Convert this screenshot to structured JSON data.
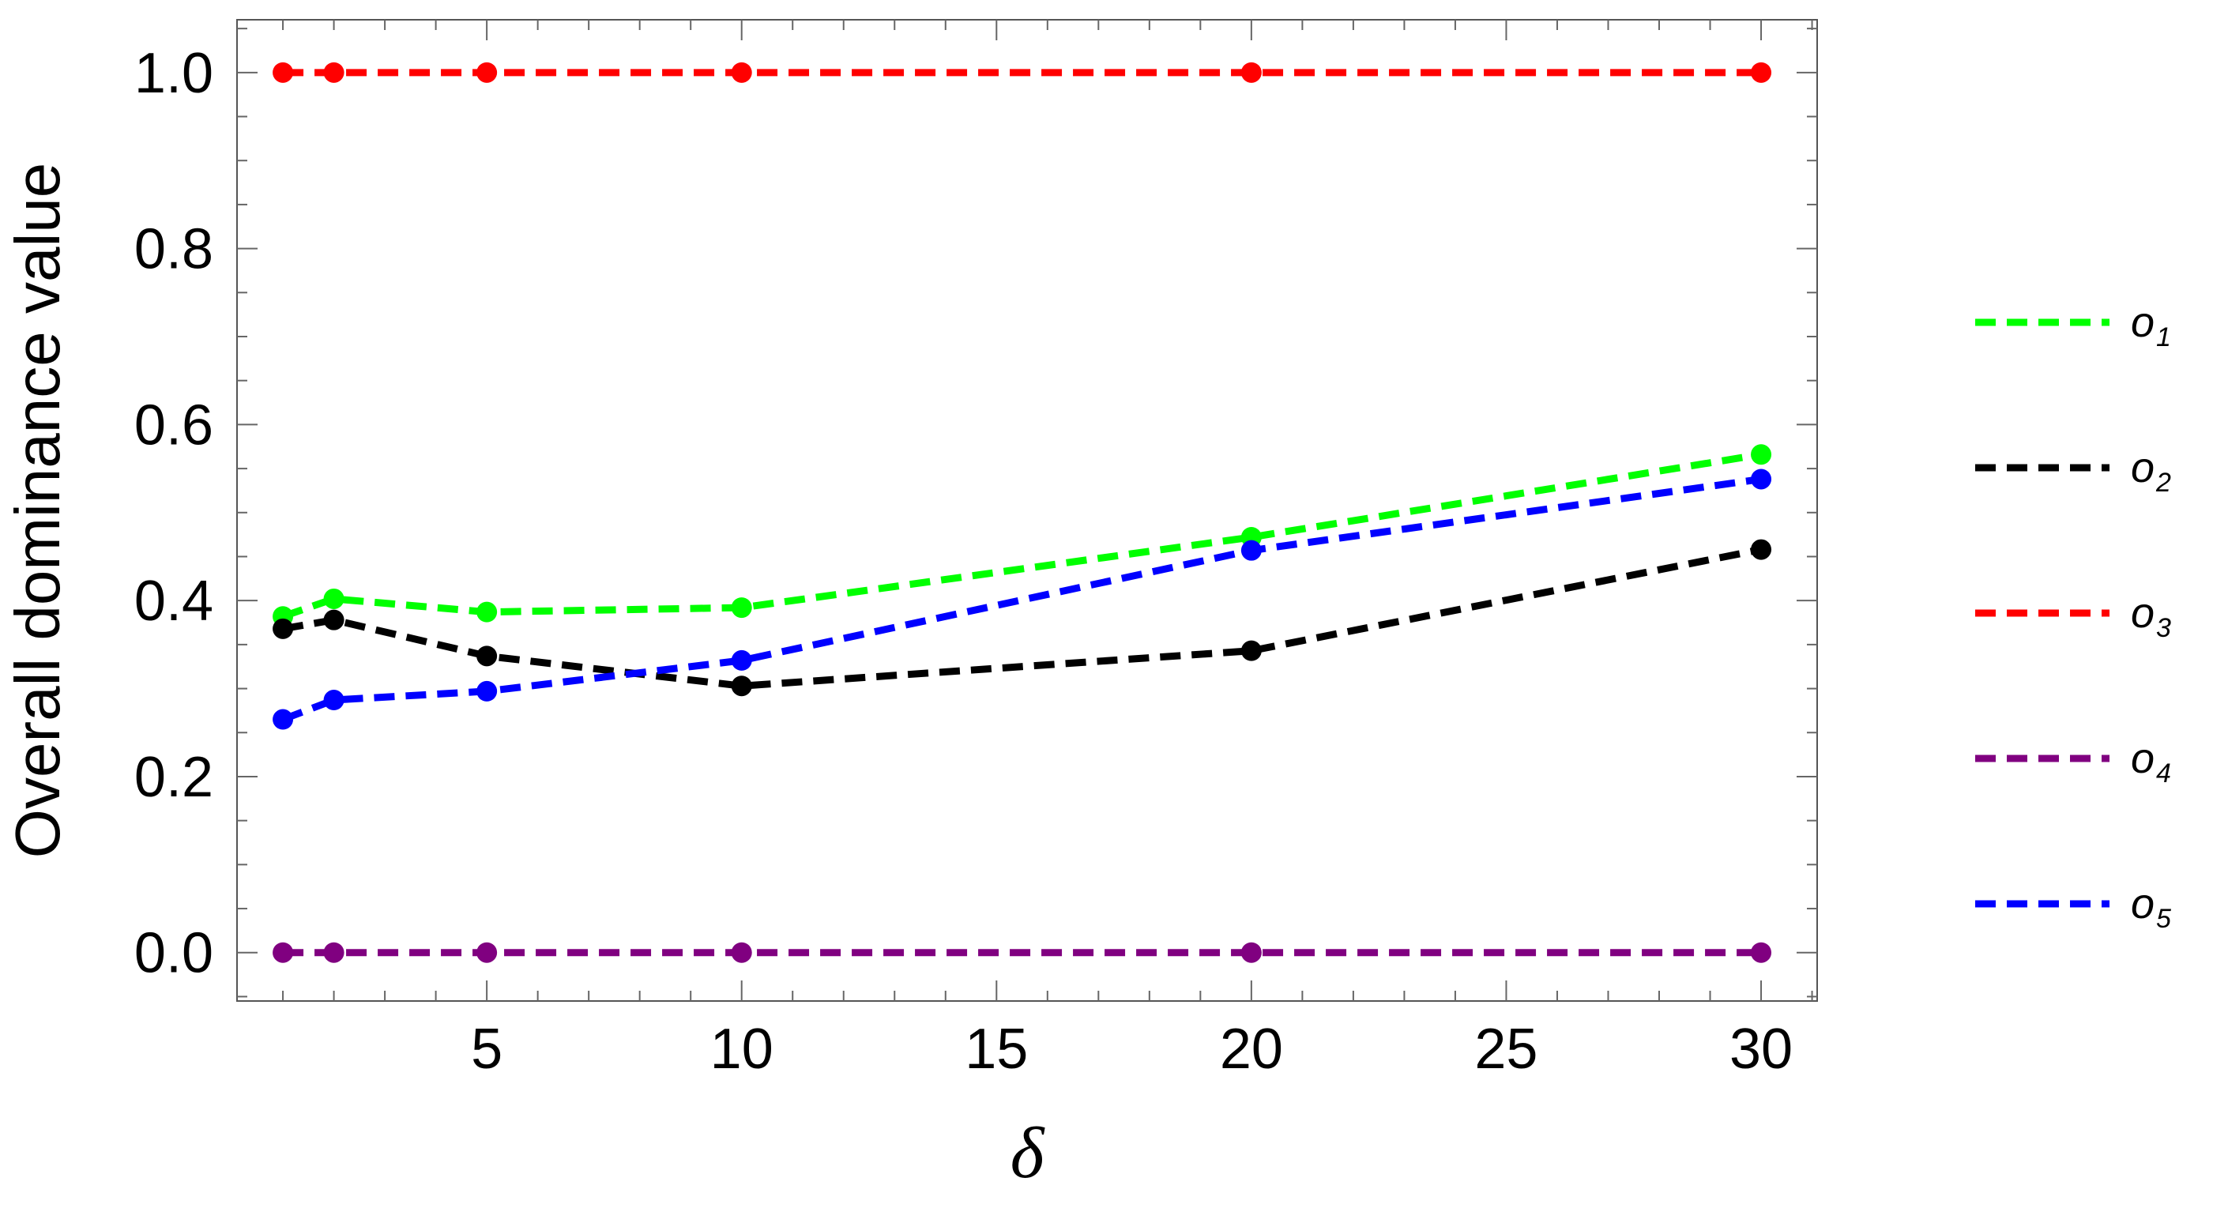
{
  "chart_data": {
    "type": "line",
    "title": "",
    "xlabel": "δ",
    "ylabel": "Overall dominance value",
    "xlim": [
      0.1,
      31.1
    ],
    "ylim": [
      -0.055,
      1.06
    ],
    "x_ticks": [
      5,
      10,
      15,
      20,
      25,
      30
    ],
    "y_ticks": [
      0.0,
      0.2,
      0.4,
      0.6,
      0.8,
      1.0
    ],
    "y_tick_labels": [
      "0.0",
      "0.2",
      "0.4",
      "0.6",
      "0.8",
      "1.0"
    ],
    "x_minor_step": 1,
    "y_minor_step": 0.05,
    "grid": false,
    "frame": true,
    "legend_position": "right",
    "line_style": "dashed",
    "markers": "filled-circle",
    "x": [
      1,
      2,
      5,
      10,
      20,
      30
    ],
    "series": [
      {
        "name": "o",
        "subscript": "1",
        "color": "#00ff00",
        "values": [
          0.382,
          0.402,
          0.387,
          0.392,
          0.472,
          0.566
        ]
      },
      {
        "name": "o",
        "subscript": "2",
        "color": "#000000",
        "values": [
          0.368,
          0.378,
          0.337,
          0.303,
          0.343,
          0.458
        ]
      },
      {
        "name": "o",
        "subscript": "3",
        "color": "#ff0000",
        "values": [
          1.0,
          1.0,
          1.0,
          1.0,
          1.0,
          1.0
        ]
      },
      {
        "name": "o",
        "subscript": "4",
        "color": "#800080",
        "values": [
          0.0,
          0.0,
          0.0,
          0.0,
          0.0,
          0.0
        ]
      },
      {
        "name": "o",
        "subscript": "5",
        "color": "#0000ff",
        "values": [
          0.265,
          0.287,
          0.297,
          0.332,
          0.457,
          0.538
        ]
      }
    ]
  }
}
